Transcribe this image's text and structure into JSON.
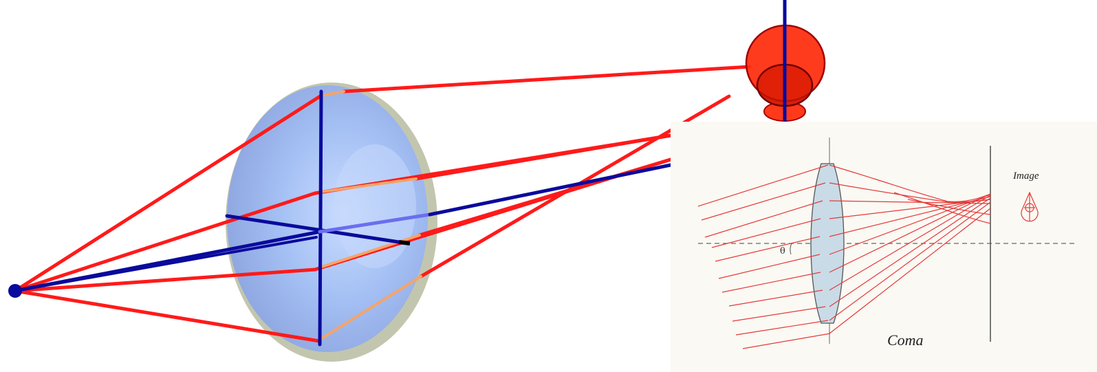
{
  "inset": {
    "image_label": "Image",
    "angle_label": "θ",
    "caption": "Coma"
  },
  "colors": {
    "ray_red": "#ff1a1a",
    "ray_blue": "#0a0a9c",
    "ray_orange": "#f4a46a",
    "lens_fill": "#a9c4f4",
    "spot_red": "#e02000",
    "inset_bg": "#fbf9f3",
    "inset_ray": "#e43a3a"
  }
}
